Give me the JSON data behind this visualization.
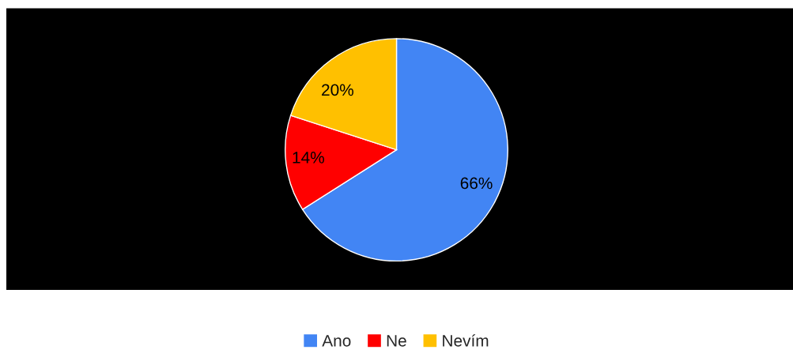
{
  "chart_data": {
    "type": "pie",
    "categories": [
      "Ano",
      "Ne",
      "Nevím"
    ],
    "values": [
      66,
      14,
      20
    ],
    "colors": [
      "#4285f4",
      "#ff0000",
      "#ffc000"
    ],
    "value_labels": [
      "66%",
      "14%",
      "20%"
    ],
    "legend": "bottom"
  }
}
